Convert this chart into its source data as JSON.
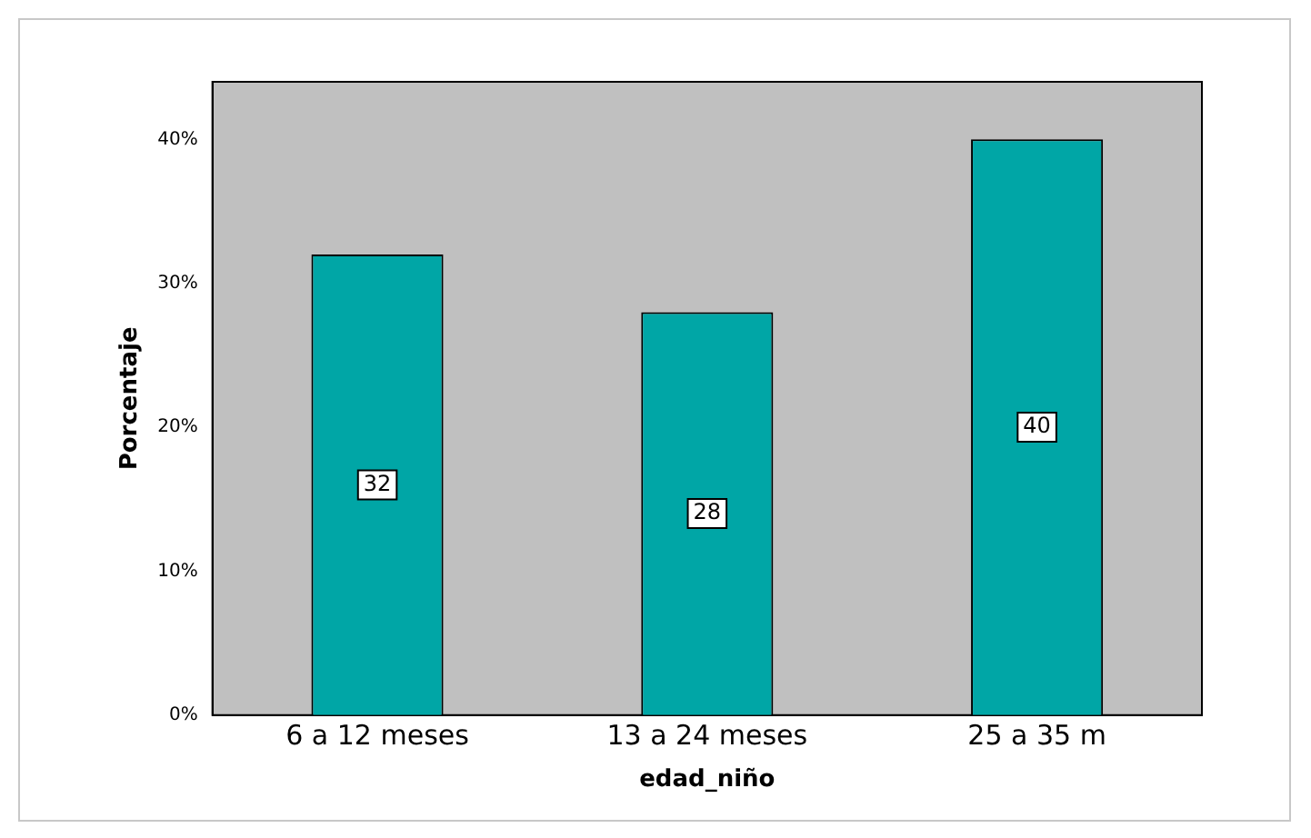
{
  "chart_data": {
    "type": "bar",
    "xlabel": "edad_niño",
    "ylabel": "Porcentaje",
    "categories": [
      "6 a 12 meses",
      "13 a 24 meses",
      "25 a 35 m"
    ],
    "values": [
      32,
      28,
      40
    ],
    "color": "#00a6a6",
    "data_labels": true,
    "ylim": [
      0,
      44
    ],
    "yticks": [
      {
        "value": 0,
        "label": "0%"
      },
      {
        "value": 10,
        "label": "10%"
      },
      {
        "value": 20,
        "label": "20%"
      },
      {
        "value": 30,
        "label": "30%"
      },
      {
        "value": 40,
        "label": "40%"
      }
    ],
    "grid": false,
    "legend": false
  }
}
